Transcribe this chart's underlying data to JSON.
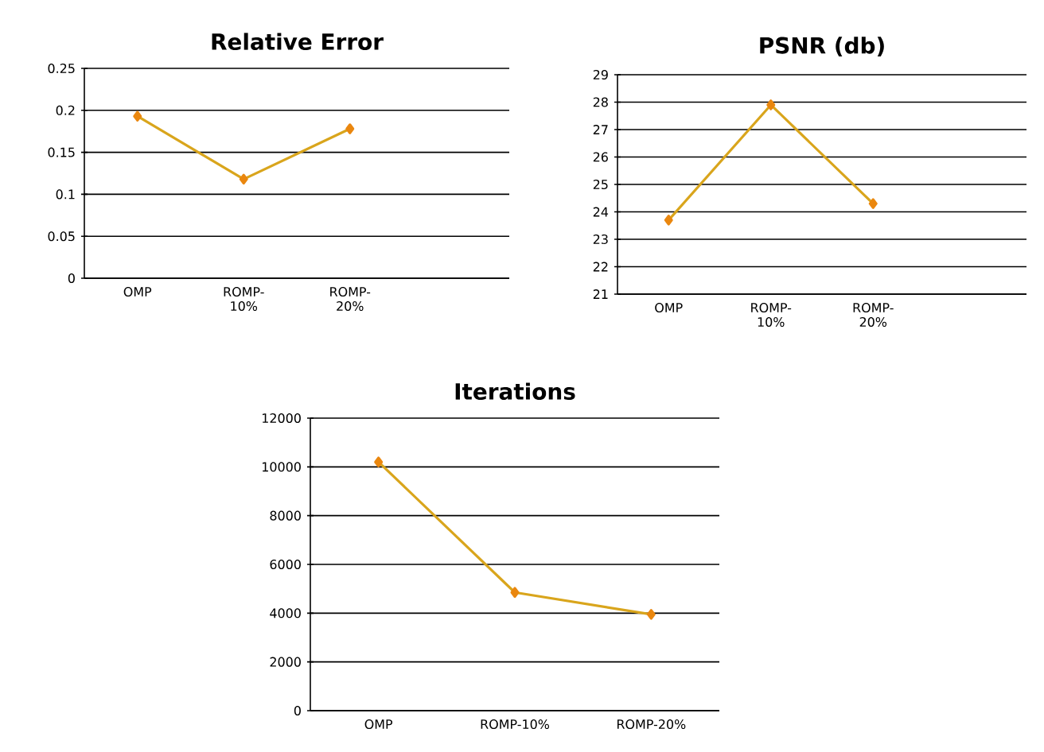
{
  "chart_data": [
    {
      "type": "line",
      "title": "Relative Error",
      "categories": [
        "OMP",
        "ROMP-10%",
        "ROMP-20%",
        null
      ],
      "series": [
        {
          "color": "#d9a51c",
          "values": [
            0.193,
            0.118,
            0.178,
            null
          ]
        }
      ],
      "ylim": [
        0,
        0.25
      ],
      "yticks": [
        0,
        0.05,
        0.1,
        0.15,
        0.2,
        0.25
      ],
      "grid": "y",
      "marker": "diamond",
      "line_style": "solid"
    },
    {
      "type": "line",
      "title": "PSNR (db)",
      "categories": [
        "OMP",
        "ROMP-10%",
        "ROMP-20%",
        null
      ],
      "series": [
        {
          "color": "#d9a51c",
          "values": [
            23.7,
            27.9,
            24.3,
            null
          ]
        }
      ],
      "ylim": [
        21,
        29
      ],
      "yticks": [
        21,
        22,
        23,
        24,
        25,
        26,
        27,
        28,
        29
      ],
      "grid": "y",
      "marker": "diamond",
      "line_style": "solid"
    },
    {
      "type": "line",
      "title": "Iterations",
      "categories": [
        "OMP",
        "ROMP-10%",
        "ROMP-20%"
      ],
      "series": [
        {
          "color": "#d9a51c",
          "values": [
            10200,
            4850,
            3950
          ]
        }
      ],
      "ylim": [
        0,
        12000
      ],
      "yticks": [
        0,
        2000,
        4000,
        6000,
        8000,
        10000,
        12000
      ],
      "grid": "y",
      "marker": "diamond",
      "line_style": "solid"
    }
  ]
}
